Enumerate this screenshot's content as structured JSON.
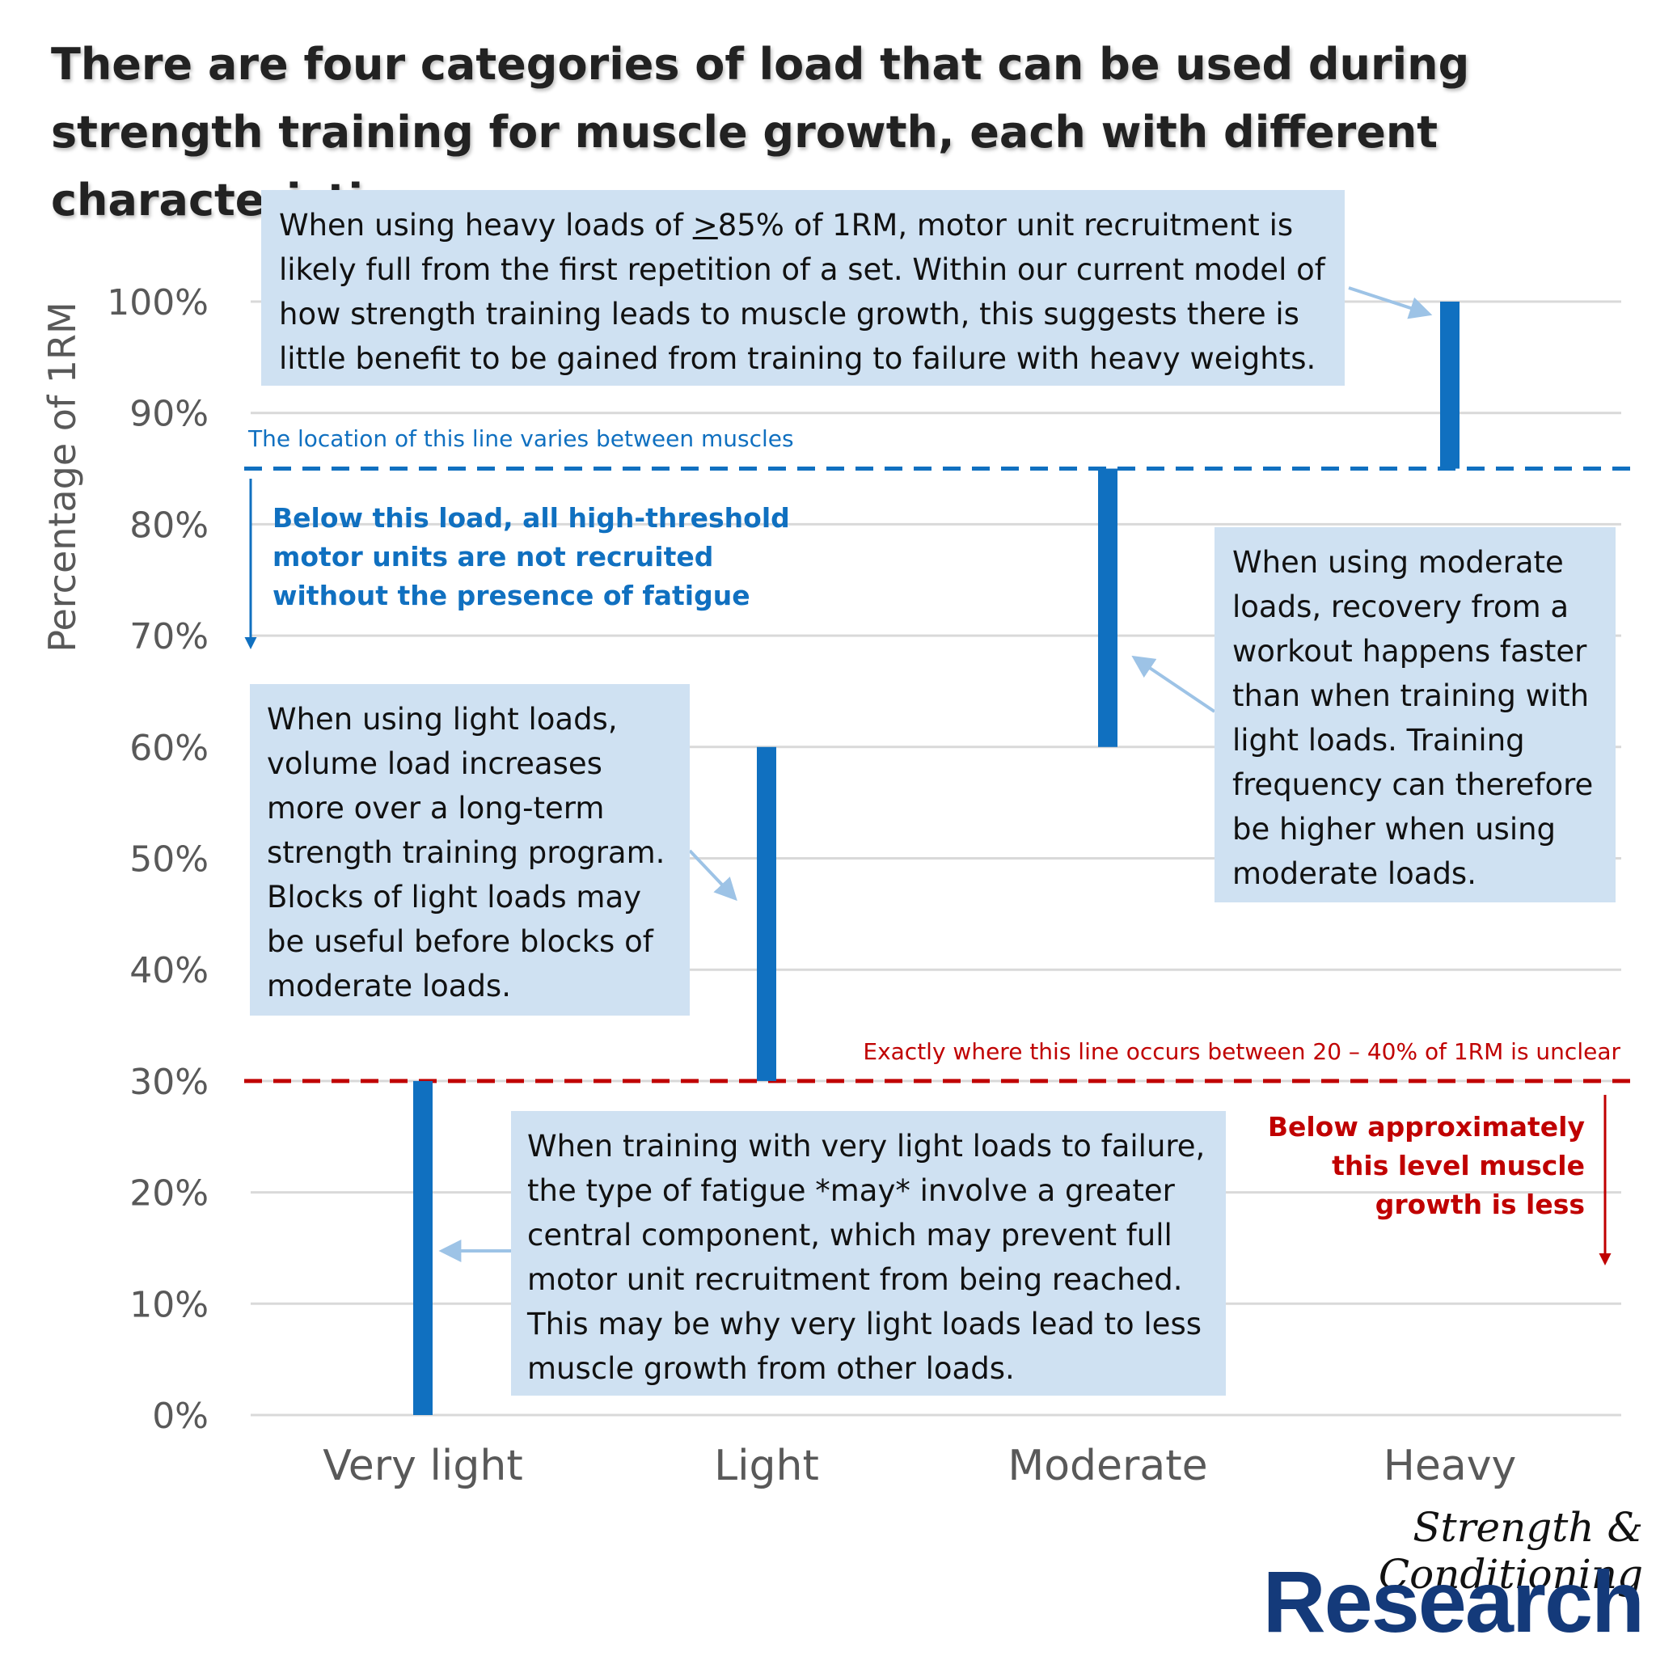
{
  "title": "There are four categories of load that can be used during strength training for muscle growth, each with different characteristics",
  "colors": {
    "bar": "#1070c0",
    "grid": "#d9d9d9",
    "axis_text": "#595959",
    "line_85": "#1070c0",
    "line_30": "#c00000",
    "callout_box": "#cfe1f2",
    "callout_arrow": "#9dc3e6",
    "logo": "#143a7a"
  },
  "chart_data": {
    "type": "floating-bar",
    "ylabel": "Percentage of 1RM",
    "ylim": [
      0,
      100
    ],
    "yticks": [
      0,
      10,
      20,
      30,
      40,
      50,
      60,
      70,
      80,
      90,
      100
    ],
    "ytick_labels": [
      "0%",
      "10%",
      "20%",
      "30%",
      "40%",
      "50%",
      "60%",
      "70%",
      "80%",
      "90%",
      "100%"
    ],
    "categories": [
      "Very light",
      "Light",
      "Moderate",
      "Heavy"
    ],
    "ranges": [
      [
        0,
        30
      ],
      [
        30,
        60
      ],
      [
        60,
        85
      ],
      [
        85,
        100
      ]
    ],
    "grid": true,
    "reference_lines": [
      {
        "value": 85,
        "style": "dashed",
        "color": "#1070c0"
      },
      {
        "value": 30,
        "style": "dashed",
        "color": "#c00000"
      }
    ]
  },
  "annotations": {
    "heavy_pre": "When using heavy loads of ",
    "heavy_u": ">",
    "heavy_post": "85% of 1RM, motor unit recruitment is likely full from the first repetition of a set. Within our current model of how strength training leads to muscle growth, this suggests there is little benefit to be gained from training to failure with heavy weights.",
    "moderate": "When using moderate loads, recovery from a workout happens faster than when training with light loads. Training frequency can therefore be higher when using moderate loads.",
    "light": "When using light loads, volume load increases more over a long-term strength training program. Blocks of light loads may be useful before blocks of moderate loads.",
    "very_light": "When training with very light loads to failure, the type of fatigue *may* involve a greater central component, which may prevent full motor unit recruitment from being reached. This may be why very light loads lead to less muscle growth from other loads.",
    "line85_caption": "The location of this line varies between muscles",
    "line85_note": "Below this load, all high-threshold motor units are not recruited without the presence of fatigue",
    "line30_caption": "Exactly where this line occurs between 20 – 40% of 1RM is unclear",
    "line30_note": "Below approximately this level muscle growth is less"
  },
  "logo": {
    "script": "Strength & Conditioning",
    "word": "Research"
  }
}
